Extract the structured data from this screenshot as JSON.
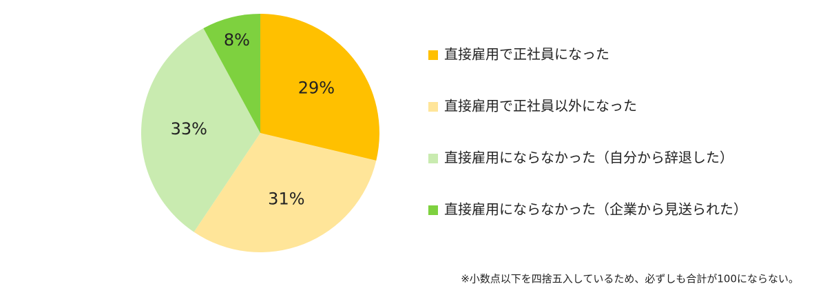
{
  "chart_data": {
    "type": "pie",
    "categories": [
      "直接雇用で正社員になった",
      "直接雇用で正社員以外になった",
      "直接雇用にならなかった（自分から辞退した）",
      "直接雇用にならなかった（企業から見送られた）"
    ],
    "values": [
      29,
      31,
      33,
      8
    ],
    "value_labels": [
      "29%",
      "31%",
      "33%",
      "8%"
    ],
    "colors": [
      "#FFC000",
      "#FFE599",
      "#C9EBB0",
      "#7ED13F"
    ],
    "note": "※小数点以下を四捨五入しているため、必ずしも合計が100にならない。"
  }
}
